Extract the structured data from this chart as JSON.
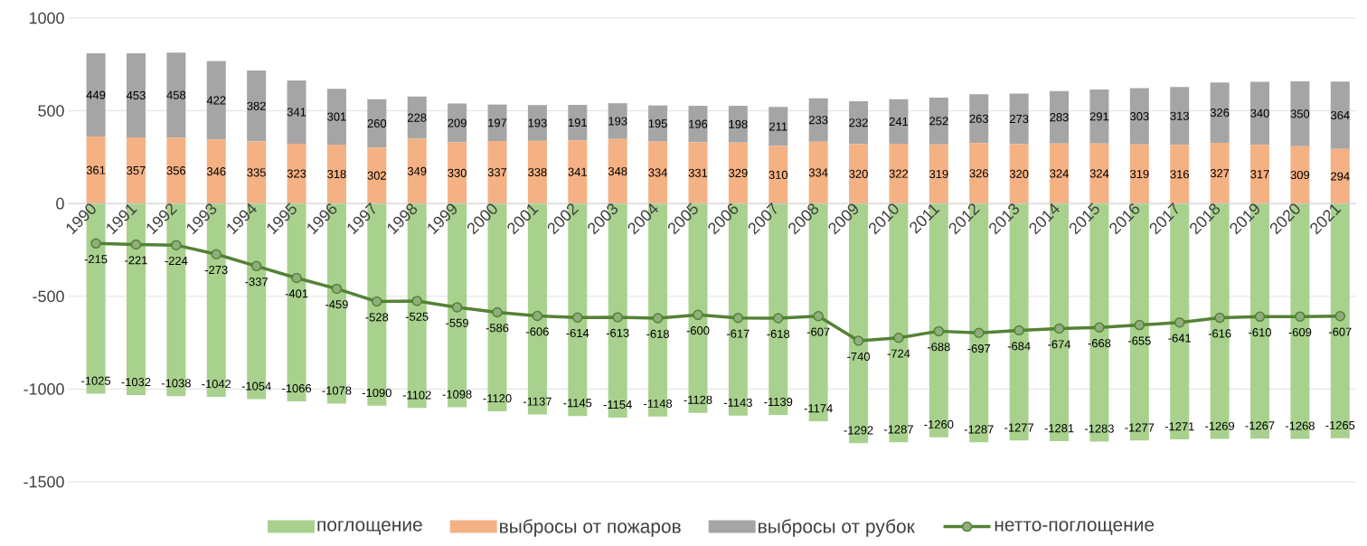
{
  "chart_data": {
    "type": "bar",
    "stacked": true,
    "categories": [
      "1990",
      "1991",
      "1992",
      "1993",
      "1994",
      "1995",
      "1996",
      "1997",
      "1998",
      "1999",
      "2000",
      "2001",
      "2002",
      "2003",
      "2004",
      "2005",
      "2006",
      "2007",
      "2008",
      "2009",
      "2010",
      "2011",
      "2012",
      "2013",
      "2014",
      "2015",
      "2016",
      "2017",
      "2018",
      "2019",
      "2020",
      "2021"
    ],
    "series": [
      {
        "name": "поглощение",
        "color": "#a9d18e",
        "values": [
          -1025,
          -1032,
          -1038,
          -1042,
          -1054,
          -1066,
          -1078,
          -1090,
          -1102,
          -1098,
          -1120,
          -1137,
          -1145,
          -1154,
          -1148,
          -1128,
          -1143,
          -1139,
          -1174,
          -1292,
          -1287,
          -1260,
          -1287,
          -1277,
          -1281,
          -1283,
          -1277,
          -1271,
          -1269,
          -1267,
          -1268,
          -1265
        ]
      },
      {
        "name": "выбросы от пожаров",
        "color": "#f4b183",
        "values": [
          361,
          357,
          356,
          346,
          335,
          323,
          318,
          302,
          349,
          330,
          337,
          338,
          341,
          348,
          334,
          331,
          329,
          310,
          334,
          320,
          322,
          319,
          326,
          320,
          324,
          324,
          319,
          316,
          327,
          317,
          309,
          294
        ]
      },
      {
        "name": "выбросы от рубок",
        "color": "#a5a5a5",
        "values": [
          449,
          453,
          458,
          422,
          382,
          341,
          301,
          260,
          228,
          209,
          197,
          193,
          191,
          193,
          195,
          196,
          198,
          211,
          233,
          232,
          241,
          252,
          263,
          273,
          283,
          291,
          303,
          313,
          326,
          340,
          350,
          364
        ]
      },
      {
        "name": "нетто-поглощение",
        "type": "line",
        "color": "#548235",
        "values": [
          -215,
          -221,
          -224,
          -273,
          -337,
          -401,
          -459,
          -528,
          -525,
          -559,
          -586,
          -606,
          -614,
          -613,
          -618,
          -600,
          -617,
          -618,
          -607,
          -740,
          -724,
          -688,
          -697,
          -684,
          -674,
          -668,
          -655,
          -641,
          -616,
          -610,
          -609,
          -607
        ]
      }
    ],
    "marker": "circle",
    "ylim": [
      -1500,
      1000
    ],
    "yticks": [
      -1500,
      -1000,
      -500,
      0,
      500,
      1000
    ],
    "grid": "y",
    "legend": "bottom",
    "data_labels": true
  }
}
